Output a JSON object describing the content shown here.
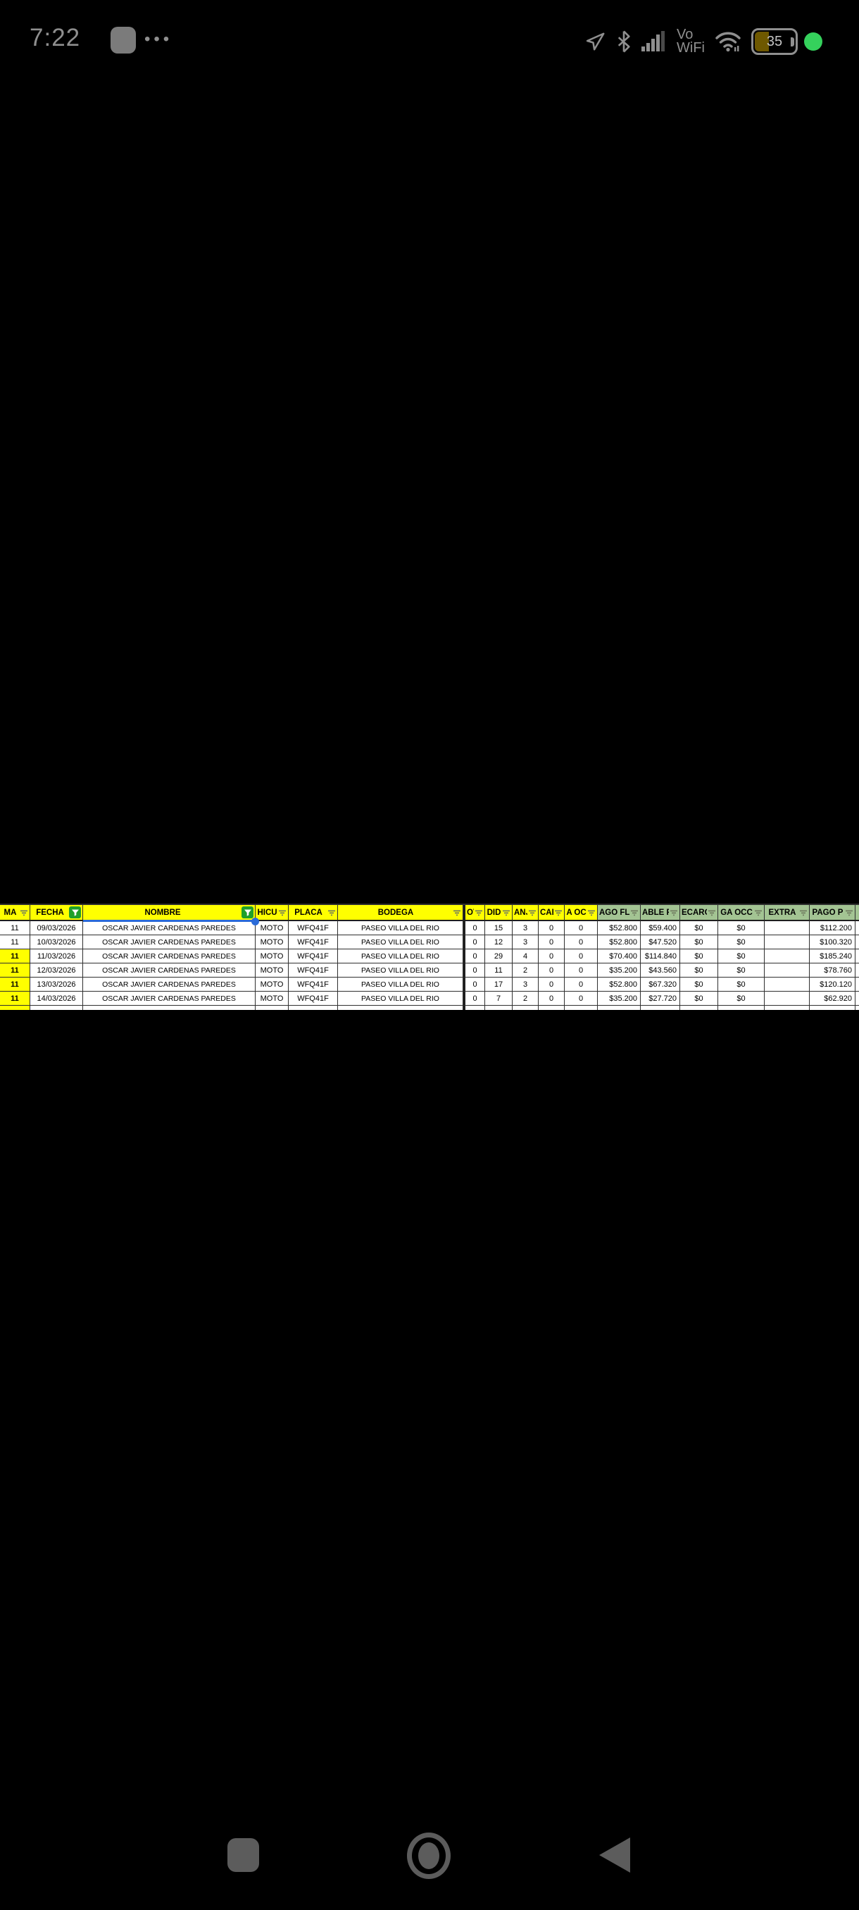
{
  "status_bar": {
    "time": "7:22",
    "dots": "•••",
    "vowifi_line1": "Vo",
    "vowifi_line2": "WiFi",
    "battery_percent": "35"
  },
  "colors": {
    "header_yellow": "#ffff00",
    "header_green": "#a3c493",
    "active_filter_green": "#1fa02a",
    "row_highlight_yellow": "#ffff00",
    "selection_blue": "#2b6bd8",
    "recording_dot_green": "#35d15c"
  },
  "table": {
    "columns": [
      {
        "key": "ma",
        "label": "MA",
        "group": "yellow",
        "filter": "plain"
      },
      {
        "key": "fecha",
        "label": "FECHA",
        "group": "yellow",
        "filter": "active"
      },
      {
        "key": "nombre",
        "label": "NOMBRE",
        "group": "yellow",
        "filter": "active",
        "selected": true
      },
      {
        "key": "vehiculo",
        "label": "HICU",
        "group": "yellow",
        "filter": "plain"
      },
      {
        "key": "placa",
        "label": "PLACA",
        "group": "yellow",
        "filter": "plain"
      },
      {
        "key": "bodega",
        "label": "BODEGA",
        "group": "yellow",
        "filter": "plain"
      },
      {
        "key": "c1",
        "label": "OV",
        "group": "yellow",
        "filter": "plain"
      },
      {
        "key": "c2",
        "label": "DID",
        "group": "yellow",
        "filter": "plain"
      },
      {
        "key": "c3",
        "label": "ANJ",
        "group": "yellow",
        "filter": "plain"
      },
      {
        "key": "c4",
        "label": "CAF",
        "group": "yellow",
        "filter": "plain"
      },
      {
        "key": "c5",
        "label": "A OC",
        "group": "yellow",
        "filter": "plain"
      },
      {
        "key": "pago_fl",
        "label": "AGO FL",
        "group": "green",
        "filter": "plain"
      },
      {
        "key": "saldo",
        "label": "ABLE F",
        "group": "green",
        "filter": "plain"
      },
      {
        "key": "recargo",
        "label": "ECARG",
        "group": "green",
        "filter": "plain"
      },
      {
        "key": "ga_occ",
        "label": "GA OCC",
        "group": "green",
        "filter": "plain"
      },
      {
        "key": "extra",
        "label": "EXTRA",
        "group": "green",
        "filter": "plain"
      },
      {
        "key": "pago_p",
        "label": "PAGO P",
        "group": "green",
        "filter": "plain"
      },
      {
        "key": "sliver",
        "label": "",
        "group": "green",
        "filter": "none"
      }
    ],
    "rows": [
      {
        "ma": "11",
        "fecha": "09/03/2026",
        "nombre": "OSCAR JAVIER CARDENAS PAREDES",
        "vehiculo": "MOTO",
        "placa": "WFQ41F",
        "bodega": "PASEO VILLA DEL RIO",
        "c1": "0",
        "c2": "15",
        "c3": "3",
        "c4": "0",
        "c5": "0",
        "pago_fl": "$52.800",
        "saldo": "$59.400",
        "recargo": "$0",
        "ga_occ": "$0",
        "extra": "",
        "pago_p": "$112.200",
        "sliver": "",
        "highlight": false
      },
      {
        "ma": "11",
        "fecha": "10/03/2026",
        "nombre": "OSCAR JAVIER CARDENAS PAREDES",
        "vehiculo": "MOTO",
        "placa": "WFQ41F",
        "bodega": "PASEO VILLA DEL RIO",
        "c1": "0",
        "c2": "12",
        "c3": "3",
        "c4": "0",
        "c5": "0",
        "pago_fl": "$52.800",
        "saldo": "$47.520",
        "recargo": "$0",
        "ga_occ": "$0",
        "extra": "",
        "pago_p": "$100.320",
        "sliver": "",
        "highlight": false
      },
      {
        "ma": "11",
        "fecha": "11/03/2026",
        "nombre": "OSCAR JAVIER CARDENAS PAREDES",
        "vehiculo": "MOTO",
        "placa": "WFQ41F",
        "bodega": "PASEO VILLA DEL RIO",
        "c1": "0",
        "c2": "29",
        "c3": "4",
        "c4": "0",
        "c5": "0",
        "pago_fl": "$70.400",
        "saldo": "$114.840",
        "recargo": "$0",
        "ga_occ": "$0",
        "extra": "",
        "pago_p": "$185.240",
        "sliver": "",
        "highlight": true
      },
      {
        "ma": "11",
        "fecha": "12/03/2026",
        "nombre": "OSCAR JAVIER CARDENAS PAREDES",
        "vehiculo": "MOTO",
        "placa": "WFQ41F",
        "bodega": "PASEO VILLA DEL RIO",
        "c1": "0",
        "c2": "11",
        "c3": "2",
        "c4": "0",
        "c5": "0",
        "pago_fl": "$35.200",
        "saldo": "$43.560",
        "recargo": "$0",
        "ga_occ": "$0",
        "extra": "",
        "pago_p": "$78.760",
        "sliver": "",
        "highlight": true
      },
      {
        "ma": "11",
        "fecha": "13/03/2026",
        "nombre": "OSCAR JAVIER CARDENAS PAREDES",
        "vehiculo": "MOTO",
        "placa": "WFQ41F",
        "bodega": "PASEO VILLA DEL RIO",
        "c1": "0",
        "c2": "17",
        "c3": "3",
        "c4": "0",
        "c5": "0",
        "pago_fl": "$52.800",
        "saldo": "$67.320",
        "recargo": "$0",
        "ga_occ": "$0",
        "extra": "",
        "pago_p": "$120.120",
        "sliver": "",
        "highlight": true
      },
      {
        "ma": "11",
        "fecha": "14/03/2026",
        "nombre": "OSCAR JAVIER CARDENAS PAREDES",
        "vehiculo": "MOTO",
        "placa": "WFQ41F",
        "bodega": "PASEO VILLA DEL RIO",
        "c1": "0",
        "c2": "7",
        "c3": "2",
        "c4": "0",
        "c5": "0",
        "pago_fl": "$35.200",
        "saldo": "$27.720",
        "recargo": "$0",
        "ga_occ": "$0",
        "extra": "",
        "pago_p": "$62.920",
        "sliver": "",
        "highlight": true
      }
    ],
    "partial_row_visible": true
  }
}
